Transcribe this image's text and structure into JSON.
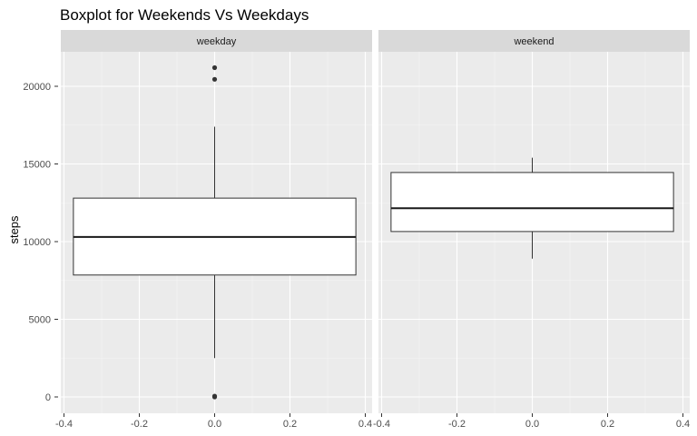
{
  "chart_data": {
    "type": "boxplot",
    "title": "Boxplot for Weekends Vs Weekdays",
    "xlabel": "",
    "ylabel": "steps",
    "xlim": [
      -0.4,
      0.4
    ],
    "ylim": [
      0,
      22000
    ],
    "x_ticks": [
      "-0.4",
      "-0.2",
      "0.0",
      "0.2",
      "0.4"
    ],
    "x_tick_values": [
      -0.4,
      -0.2,
      0.0,
      0.2,
      0.4
    ],
    "y_ticks": [
      "0",
      "5000",
      "10000",
      "15000",
      "20000"
    ],
    "y_tick_values": [
      0,
      5000,
      10000,
      15000,
      20000
    ],
    "grid": true,
    "panel_background": "#ebebeb",
    "strip_background": "#d9d9d9",
    "panels": [
      {
        "name": "weekday",
        "box": {
          "min": 2500,
          "q1": 7850,
          "median": 10300,
          "q3": 12800,
          "max": 17400
        },
        "outliers": [
          21200,
          20450,
          50,
          0
        ],
        "box_x_range": [
          -0.375,
          0.375
        ]
      },
      {
        "name": "weekend",
        "box": {
          "min": 8900,
          "q1": 10650,
          "median": 12150,
          "q3": 14450,
          "max": 15400
        },
        "outliers": [],
        "box_x_range": [
          -0.375,
          0.375
        ]
      }
    ]
  }
}
